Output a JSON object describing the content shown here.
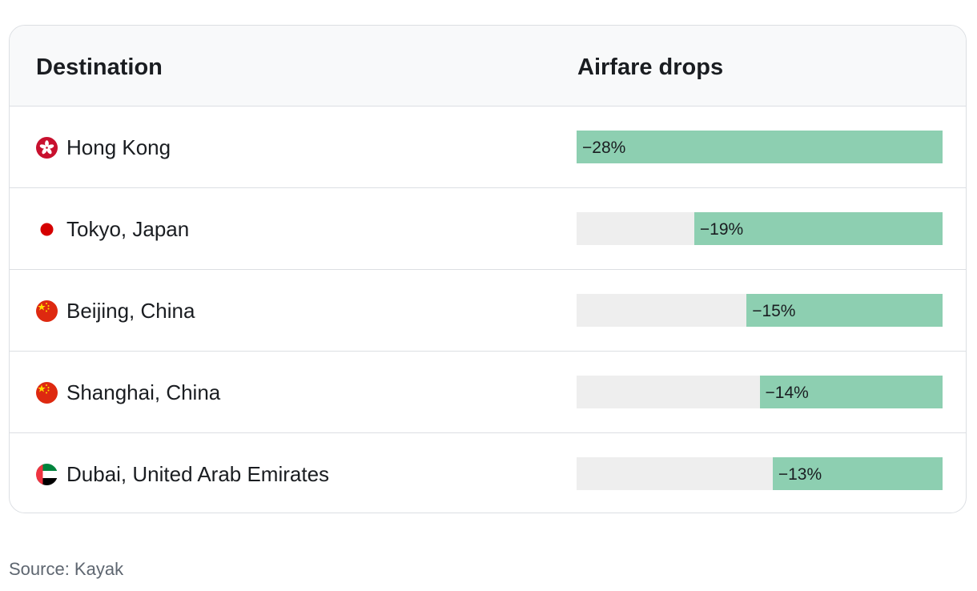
{
  "chart_data": {
    "type": "bar",
    "orientation": "horizontal",
    "columns": [
      "Destination",
      "Airfare drops"
    ],
    "categories": [
      "Hong Kong",
      "Tokyo, Japan",
      "Beijing, China",
      "Shanghai, China",
      "Dubai, United Arab Emirates"
    ],
    "values": [
      -28,
      -19,
      -15,
      -14,
      -13
    ],
    "value_labels": [
      "−28%",
      "−19%",
      "−15%",
      "−14%",
      "−13%"
    ],
    "flags": [
      "hong-kong-flag-icon",
      "japan-flag-icon",
      "china-flag-icon",
      "china-flag-icon",
      "uae-flag-icon"
    ],
    "xlim": [
      -28,
      0
    ],
    "bar_color": "#8dcfb1",
    "track_color": "#eeeeee",
    "source": "Source: Kayak"
  }
}
